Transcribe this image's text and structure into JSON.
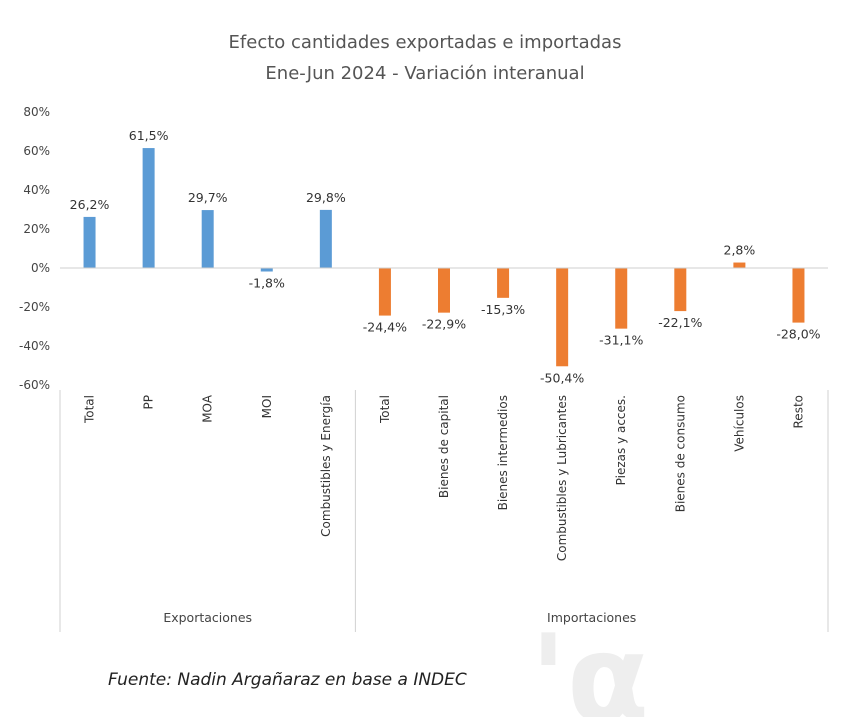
{
  "chart_data": {
    "type": "bar",
    "title": "Efecto cantidades exportadas e importadas",
    "subtitle": "Ene-Jun 2024 - Variación interanual",
    "ylim": [
      -60,
      80
    ],
    "yticks": [
      "80%",
      "60%",
      "40%",
      "20%",
      "0%",
      "-20%",
      "-40%",
      "-60%"
    ],
    "ytick_values": [
      80,
      60,
      40,
      20,
      0,
      -20,
      -40,
      -60
    ],
    "grid": false,
    "groups": [
      {
        "name": "Exportaciones",
        "color": "#5B9BD5",
        "categories": [
          "Total",
          "PP",
          "MOA",
          "MOI",
          "Combustibles y Energía"
        ],
        "values": [
          26.2,
          61.5,
          29.7,
          -1.8,
          29.8
        ],
        "labels": [
          "26,2%",
          "61,5%",
          "29,7%",
          "-1,8%",
          "29,8%"
        ]
      },
      {
        "name": "Importaciones",
        "color": "#ED7D31",
        "categories": [
          "Total",
          "Bienes de capital",
          "Bienes intermedios",
          "Combustibles y Lubricantes",
          "Piezas y acces.",
          "Bienes de consumo",
          "Vehículos",
          "Resto"
        ],
        "values": [
          -24.4,
          -22.9,
          -15.3,
          -50.4,
          -31.1,
          -22.1,
          2.8,
          -28.0
        ],
        "labels": [
          "-24,4%",
          "-22,9%",
          "-15,3%",
          "-50,4%",
          "-31,1%",
          "-22,1%",
          "2,8%",
          "-28,0%"
        ]
      }
    ]
  },
  "source": "Fuente: Nadin Argañaraz en base a INDEC"
}
